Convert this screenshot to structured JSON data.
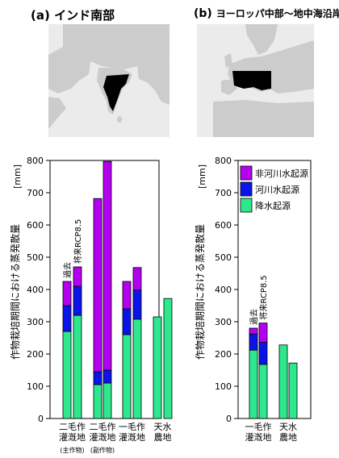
{
  "panels": [
    {
      "label": "(a)",
      "title": "インド南部",
      "map_region_label": "インド南部"
    },
    {
      "label": "(b)",
      "title": "ヨーロッパ中部～地中海沿岸",
      "map_region_label": "ヨーロッパ中部～地中海沿岸"
    }
  ],
  "ylabel": "作物栽培期間における蒸発散量",
  "yunit": "[mm]",
  "bar_labels": [
    "過去",
    "将来RCP8.5"
  ],
  "colors": {
    "precip": "#2ee88e",
    "river": "#0a14e8",
    "nonriver": "#b400f0",
    "map_land": "#cccccc",
    "map_sea": "#ebebeb",
    "region_fill": "#000000"
  },
  "chart_data": [
    {
      "type": "bar",
      "stacked": true,
      "title": "インド南部",
      "xlabel": "",
      "ylabel": "作物栽培期間における蒸発散量 [mm]",
      "ylim": [
        0,
        800
      ],
      "yticks": [
        0,
        100,
        200,
        300,
        400,
        500,
        600,
        700,
        800
      ],
      "grid": false,
      "groups": [
        {
          "label": [
            "二毛作",
            "灌漑地"
          ],
          "sublabel": "(主作物)"
        },
        {
          "label": [
            "二毛作",
            "灌漑地"
          ],
          "sublabel": "(副作物)"
        },
        {
          "label": [
            "一毛作",
            "灌漑地"
          ],
          "sublabel": ""
        },
        {
          "label": [
            "天水",
            "農地"
          ],
          "sublabel": ""
        }
      ],
      "periods": [
        "過去",
        "将来RCP8.5"
      ],
      "series": [
        {
          "name": "降水起源",
          "values": [
            [
              270,
              320
            ],
            [
              105,
              110
            ],
            [
              260,
              308
            ],
            [
              315,
              372
            ]
          ]
        },
        {
          "name": "河川水起源",
          "values": [
            [
              80,
              90
            ],
            [
              40,
              40
            ],
            [
              80,
              90
            ],
            [
              0,
              0
            ]
          ]
        },
        {
          "name": "非河川水起源",
          "values": [
            [
              75,
              60
            ],
            [
              537,
              647
            ],
            [
              85,
              70
            ],
            [
              0,
              0
            ]
          ]
        }
      ]
    },
    {
      "type": "bar",
      "stacked": true,
      "title": "ヨーロッパ中部～地中海沿岸",
      "xlabel": "",
      "ylabel": "作物栽培期間における蒸発散量 [mm]",
      "ylim": [
        0,
        800
      ],
      "yticks": [
        0,
        100,
        200,
        300,
        400,
        500,
        600,
        700,
        800
      ],
      "grid": false,
      "legend": {
        "position": "top-left",
        "entries": [
          "非河川水起源",
          "河川水起源",
          "降水起源"
        ]
      },
      "groups": [
        {
          "label": [
            "一毛作",
            "灌漑地"
          ],
          "sublabel": ""
        },
        {
          "label": [
            "天水",
            "農地"
          ],
          "sublabel": ""
        }
      ],
      "periods": [
        "過去",
        "将来RCP8.5"
      ],
      "series": [
        {
          "name": "降水起源",
          "values": [
            [
              212,
              168
            ],
            [
              228,
              172
            ]
          ]
        },
        {
          "name": "河川水起源",
          "values": [
            [
              50,
              68
            ],
            [
              0,
              0
            ]
          ]
        },
        {
          "name": "非河川水起源",
          "values": [
            [
              18,
              60
            ],
            [
              0,
              0
            ]
          ]
        }
      ]
    }
  ]
}
